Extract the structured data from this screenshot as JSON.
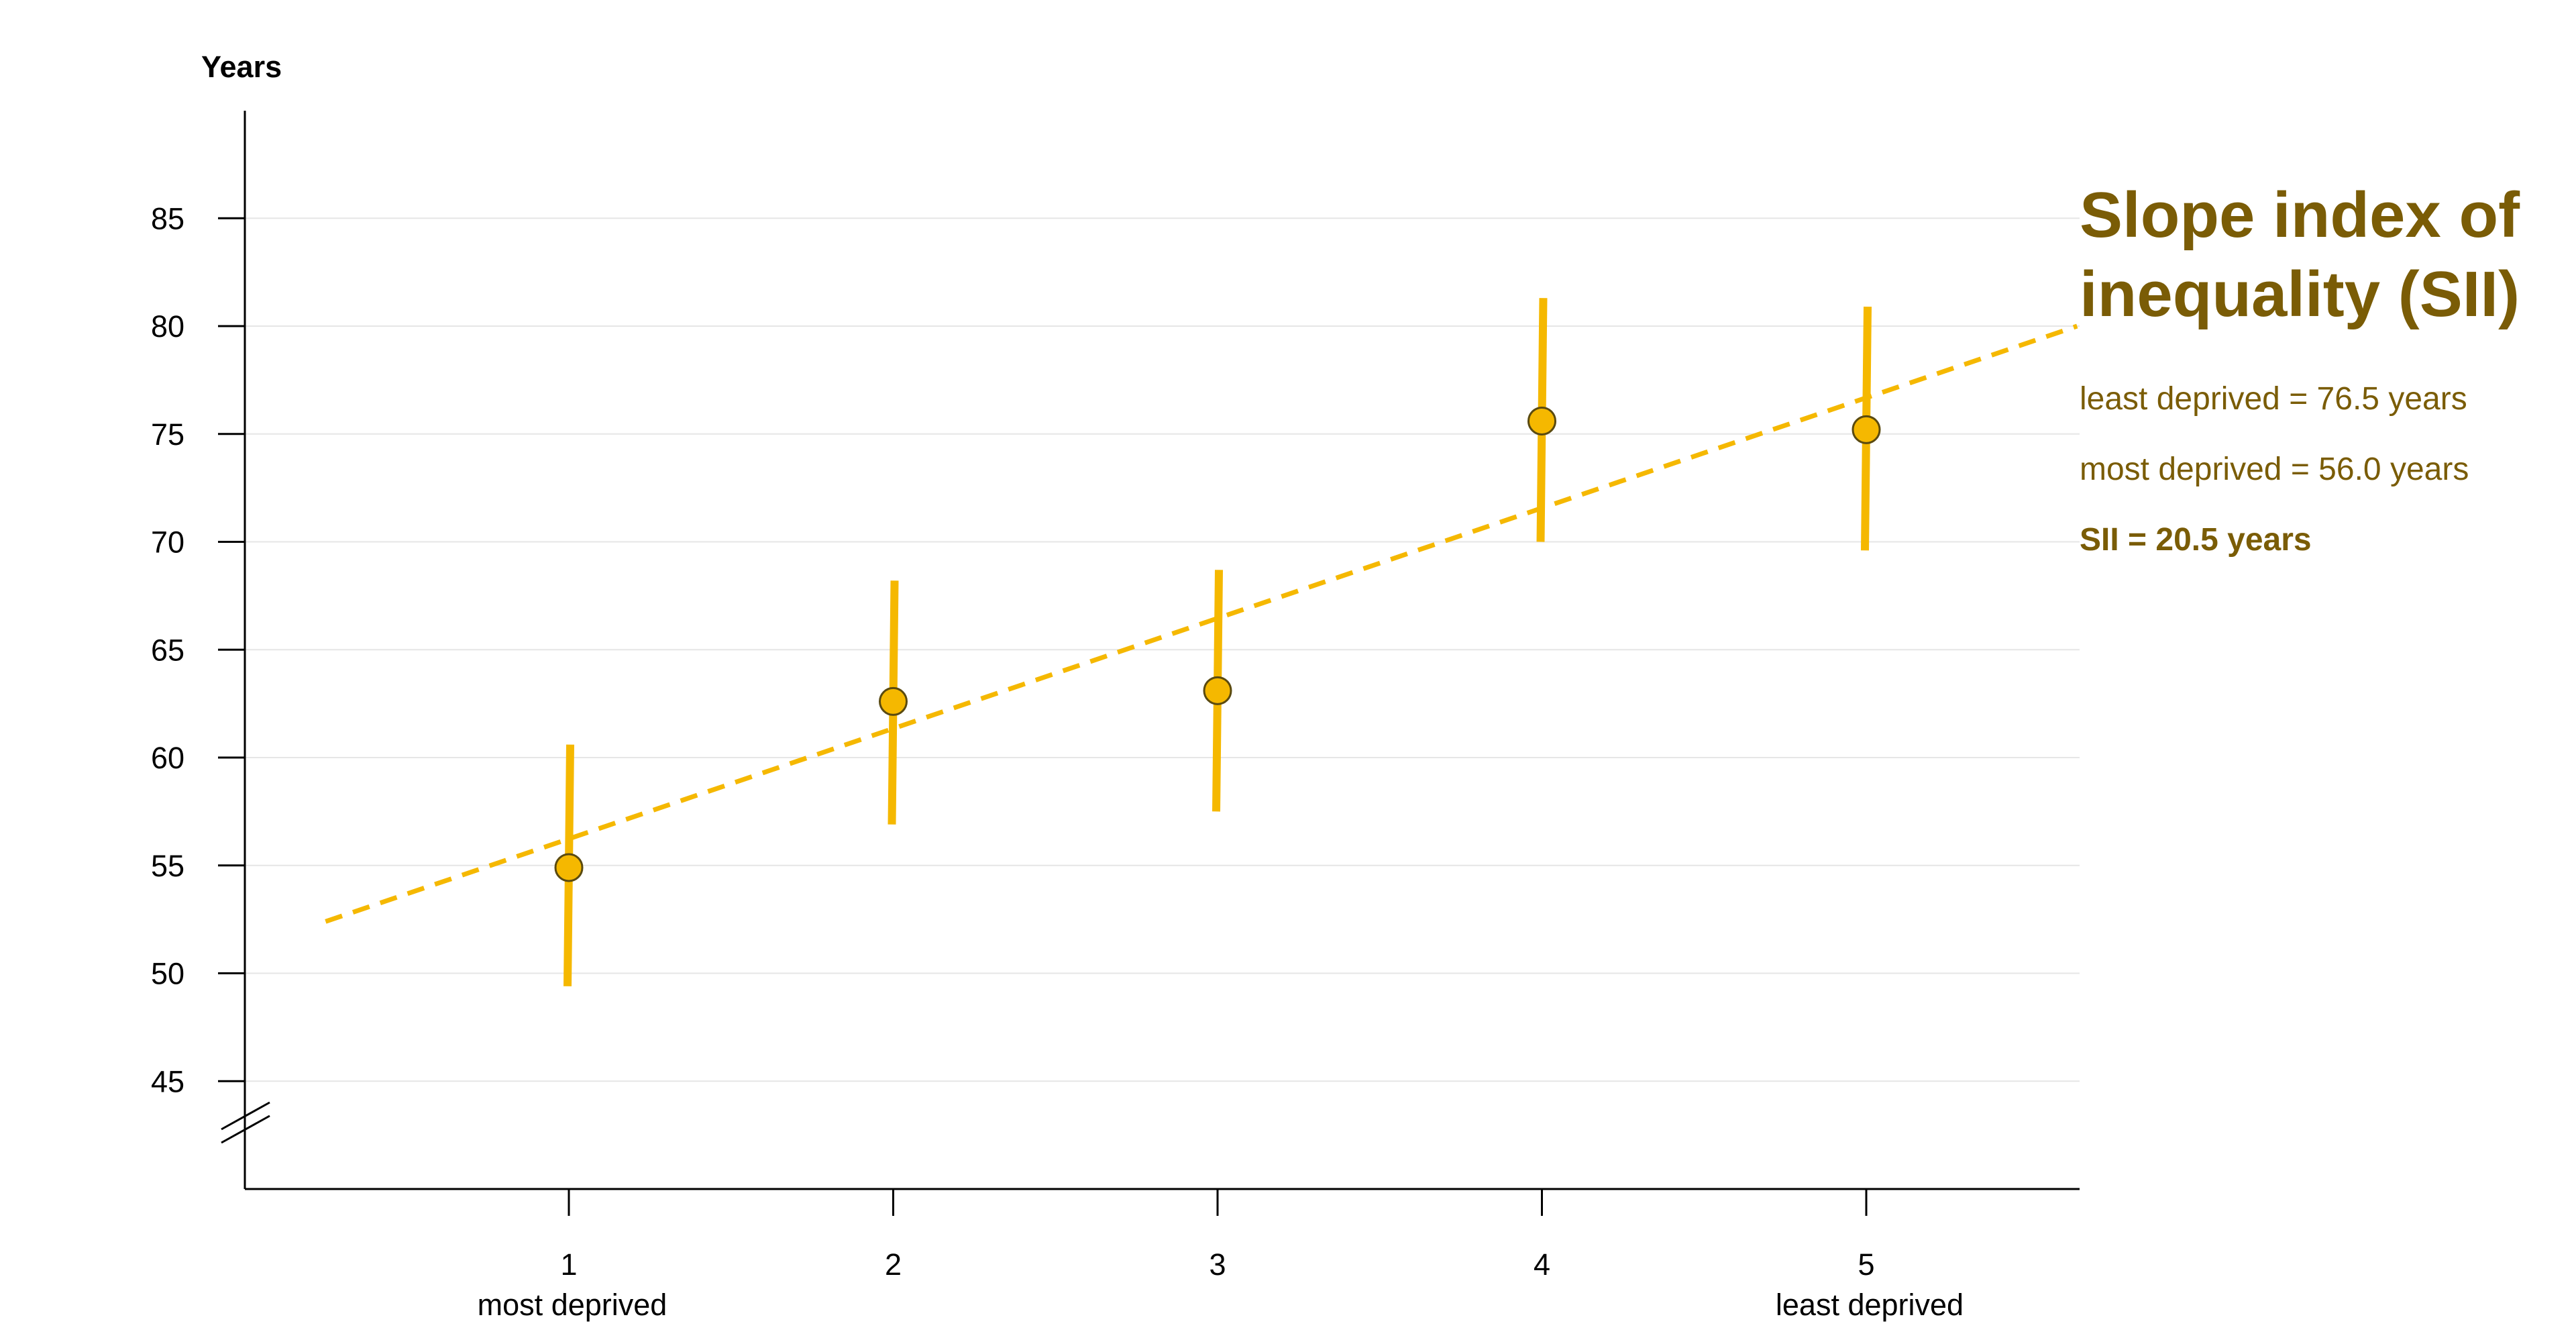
{
  "chart_data": {
    "type": "scatter",
    "y_axis_title": "Years",
    "ylim": [
      40,
      90
    ],
    "y_ticks": [
      45,
      50,
      55,
      60,
      65,
      70,
      75,
      80,
      85
    ],
    "x_ticks": [
      {
        "value": 1,
        "label": "1",
        "sublabel": "most deprived"
      },
      {
        "value": 2,
        "label": "2",
        "sublabel": ""
      },
      {
        "value": 3,
        "label": "3",
        "sublabel": ""
      },
      {
        "value": 4,
        "label": "4",
        "sublabel": ""
      },
      {
        "value": 5,
        "label": "5",
        "sublabel": "least deprived"
      }
    ],
    "xlim": [
      0,
      5.65
    ],
    "grid": true,
    "axis_break": true,
    "points": [
      {
        "x": 1,
        "y": 54.9,
        "lower": 49.4,
        "upper": 60.6
      },
      {
        "x": 2,
        "y": 62.6,
        "lower": 56.9,
        "upper": 68.2
      },
      {
        "x": 3,
        "y": 63.1,
        "lower": 57.5,
        "upper": 68.7
      },
      {
        "x": 4,
        "y": 75.6,
        "lower": 70.0,
        "upper": 81.3
      },
      {
        "x": 5,
        "y": 75.2,
        "lower": 69.6,
        "upper": 80.9
      }
    ],
    "trend_line": {
      "x_start": 0.25,
      "y_start": 52.4,
      "x_end": 5.65,
      "y_end": 80.0
    },
    "colors": {
      "marker": "#f5b800",
      "marker_edge": "#5a4a10",
      "error_bar": "#f5b800",
      "trend": "#f5b800",
      "annotation": "#7a5c06",
      "grid": "#e6e6e6",
      "axis": "#000000"
    }
  },
  "annotation": {
    "title": "Slope index of inequality (SII)",
    "least_deprived": "least deprived = 76.5 years",
    "most_deprived": "most deprived = 56.0 years",
    "sii": "SII = 20.5 years"
  }
}
